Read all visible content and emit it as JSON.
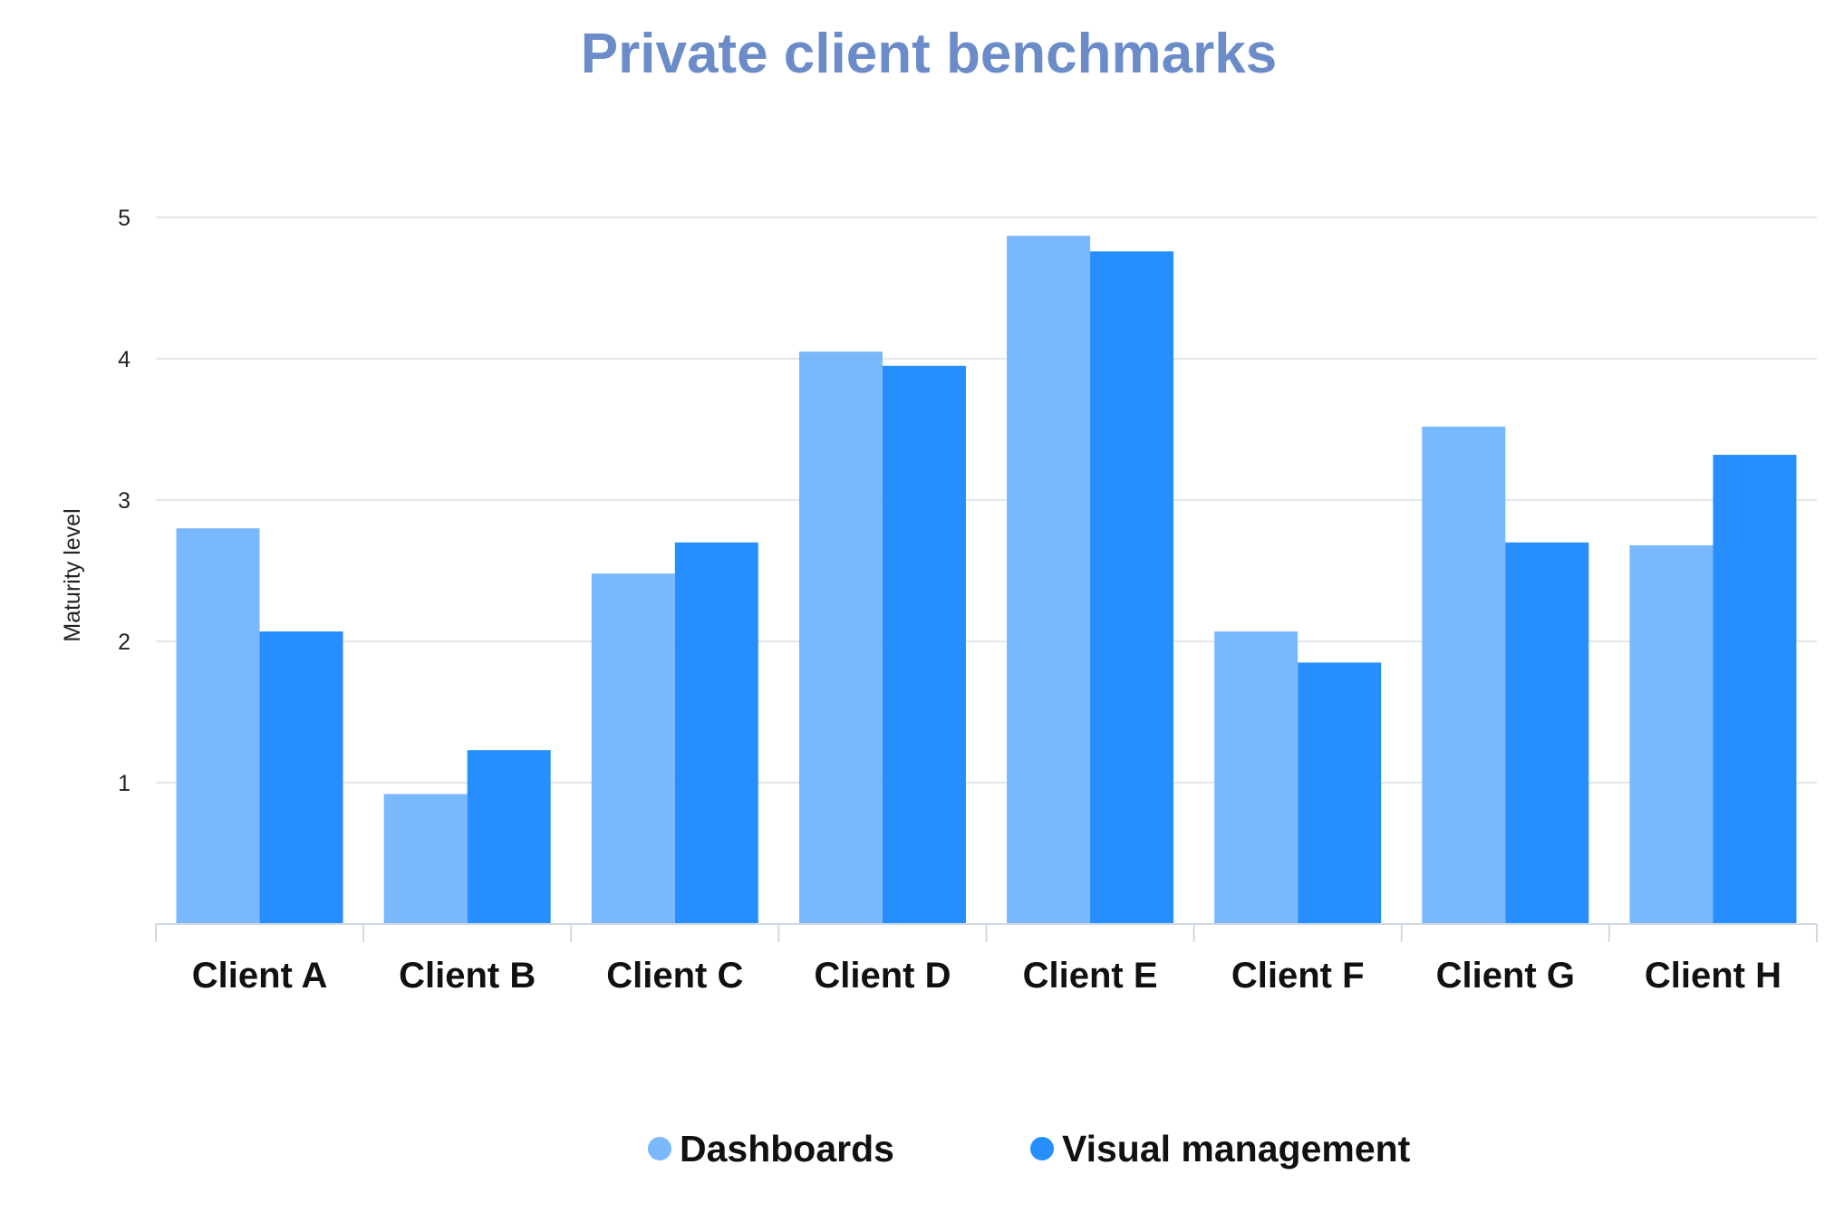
{
  "chart_data": {
    "type": "bar",
    "title": "Private client benchmarks",
    "xlabel": "",
    "ylabel": "Maturity level",
    "categories": [
      "Client A",
      "Client B",
      "Client C",
      "Client D",
      "Client E",
      "Client F",
      "Client G",
      "Client H"
    ],
    "series": [
      {
        "name": "Dashboards",
        "values": [
          2.8,
          0.92,
          2.48,
          4.05,
          4.87,
          2.07,
          3.52,
          2.68
        ]
      },
      {
        "name": "Visual management",
        "values": [
          2.07,
          1.23,
          2.7,
          3.95,
          4.76,
          1.85,
          2.7,
          3.32
        ]
      }
    ],
    "yticks": [
      "1",
      "2",
      "3",
      "4",
      "5"
    ],
    "ylim": [
      0,
      5
    ],
    "grid": true,
    "legend_position": "bottom-center",
    "colors": {
      "title": "#6b8cc8",
      "Dashboards": "#7ab8fc",
      "Visual management": "#278ffd",
      "grid": "#e4e7eb",
      "axis": "#d0d8e4"
    }
  }
}
